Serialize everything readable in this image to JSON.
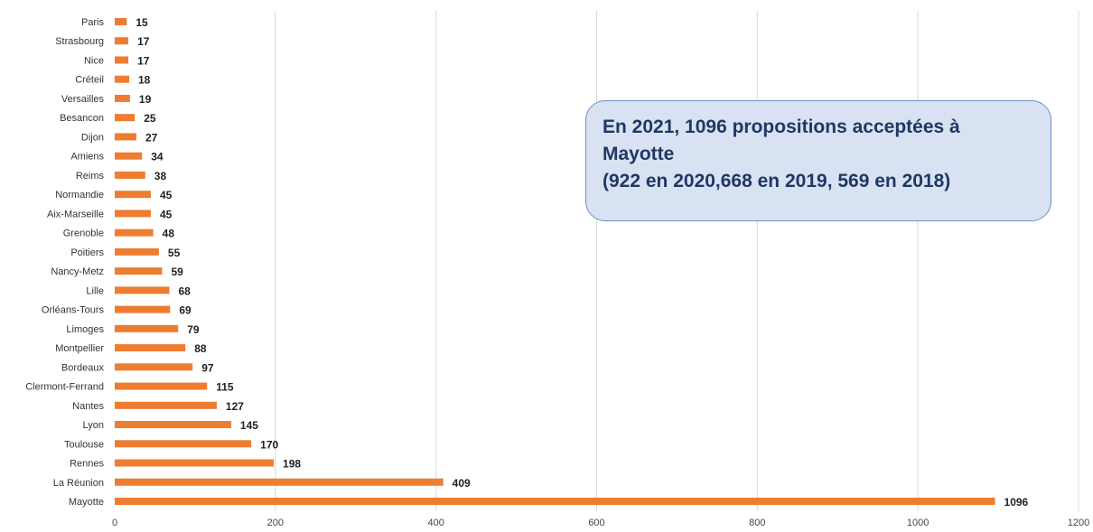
{
  "callout": {
    "line1": "En 2021, 1096 propositions acceptées à",
    "line2": "Mayotte",
    "line3": "(922 en 2020,668 en 2019, 569 en 2018)"
  },
  "colors": {
    "bar": "#ed7d31",
    "grid": "#d9d9d9",
    "callout_bg": "#d9e2f2",
    "callout_text": "#1f3864"
  },
  "chart_data": {
    "type": "bar",
    "orientation": "horizontal",
    "categories": [
      "Paris",
      "Strasbourg",
      "Nice",
      "Créteil",
      "Versailles",
      "Besancon",
      "Dijon",
      "Amiens",
      "Reims",
      "Normandie",
      "Aix-Marseille",
      "Grenoble",
      "Poitiers",
      "Nancy-Metz",
      "Lille",
      "Orléans-Tours",
      "Limoges",
      "Montpellier",
      "Bordeaux",
      "Clermont-Ferrand",
      "Nantes",
      "Lyon",
      "Toulouse",
      "Rennes",
      "La Réunion",
      "Mayotte"
    ],
    "values": [
      15,
      17,
      17,
      18,
      19,
      25,
      27,
      34,
      38,
      45,
      45,
      48,
      55,
      59,
      68,
      69,
      79,
      88,
      97,
      115,
      127,
      145,
      170,
      198,
      409,
      1096
    ],
    "xlim": [
      0,
      1200
    ],
    "xticks": [
      0,
      200,
      400,
      600,
      800,
      1000,
      1200
    ],
    "title": "",
    "xlabel": "",
    "ylabel": "",
    "grid": "vertical",
    "legend": "none"
  }
}
